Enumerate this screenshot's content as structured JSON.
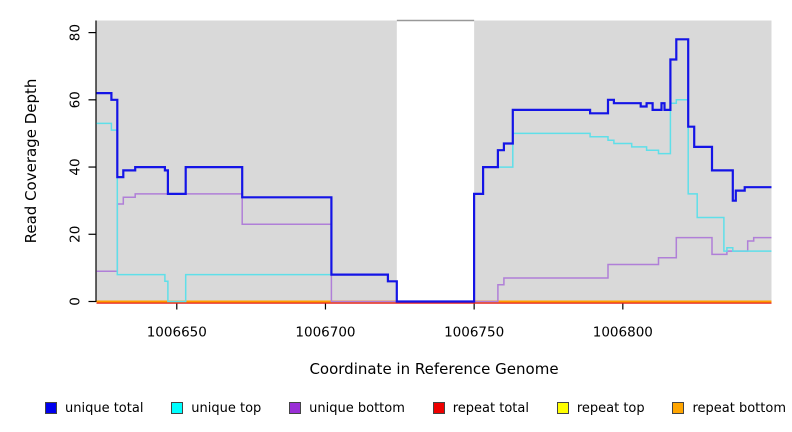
{
  "figure": {
    "x_axis_label": "Coordinate in Reference Genome",
    "y_axis_label": "Read Coverage Depth"
  },
  "chart_data": {
    "type": "line",
    "title": "",
    "xlabel": "Coordinate in Reference Genome",
    "ylabel": "Read Coverage Depth",
    "step_mode": "step-after",
    "xlim": [
      1006623,
      1006850
    ],
    "ylim": [
      0,
      83.6
    ],
    "x_ticks": [
      1006650,
      1006700,
      1006750,
      1006800
    ],
    "y_ticks": [
      0,
      20,
      40,
      60,
      80
    ],
    "plot_background_color": "#d9d9d9",
    "no_data_gap_x": [
      1006724,
      1006750
    ],
    "gap_top_border_color": "#999999",
    "series": [
      {
        "name": "repeat total",
        "color": "#e62020",
        "line_width": 2,
        "py_offset": 1.3,
        "segments": [
          [
            [
              1006623,
              0
            ],
            [
              1006850,
              0
            ]
          ]
        ]
      },
      {
        "name": "repeat top",
        "color": "#ffff00",
        "line_width": 1.6,
        "py_offset": 0,
        "segments": [
          [
            [
              1006623,
              0
            ],
            [
              1006850,
              0
            ]
          ]
        ]
      },
      {
        "name": "repeat bottom",
        "color": "#ff9d00",
        "line_width": 1.9,
        "py_offset": 0,
        "segments": [
          [
            [
              1006623,
              0
            ],
            [
              1006724,
              0
            ]
          ],
          [
            [
              1006750,
              0
            ],
            [
              1006850,
              0
            ]
          ]
        ]
      },
      {
        "name": "unique bottom",
        "color": "#b07fd8",
        "line_width": 1.5,
        "py_offset": 0,
        "segments": [
          [
            [
              1006623,
              9
            ],
            [
              1006630,
              29
            ],
            [
              1006632,
              31
            ],
            [
              1006636,
              32
            ],
            [
              1006672,
              23
            ],
            [
              1006702,
              0
            ],
            [
              1006758,
              5
            ],
            [
              1006760,
              7
            ],
            [
              1006795,
              11
            ],
            [
              1006812,
              13
            ],
            [
              1006818,
              19
            ],
            [
              1006830,
              14
            ],
            [
              1006835,
              15
            ],
            [
              1006842,
              18
            ],
            [
              1006844,
              19
            ],
            [
              1006850,
              19
            ]
          ]
        ]
      },
      {
        "name": "unique top",
        "color": "#5fdfe9",
        "line_width": 1.5,
        "py_offset": 0,
        "segments": [
          [
            [
              1006623,
              53
            ],
            [
              1006628,
              51
            ],
            [
              1006630,
              8
            ],
            [
              1006646,
              6
            ],
            [
              1006647,
              0
            ],
            [
              1006653,
              8
            ],
            [
              1006721,
              6
            ],
            [
              1006724,
              0
            ],
            [
              1006750,
              32
            ],
            [
              1006753,
              40
            ],
            [
              1006763,
              50
            ],
            [
              1006789,
              49
            ],
            [
              1006795,
              48
            ],
            [
              1006797,
              47
            ],
            [
              1006803,
              46
            ],
            [
              1006808,
              45
            ],
            [
              1006812,
              44
            ],
            [
              1006816,
              59
            ],
            [
              1006818,
              60
            ],
            [
              1006822,
              32
            ],
            [
              1006825,
              25
            ],
            [
              1006834,
              15
            ],
            [
              1006835,
              16
            ],
            [
              1006837,
              15
            ],
            [
              1006850,
              15
            ]
          ]
        ]
      },
      {
        "name": "unique total",
        "color": "#1414e6",
        "line_width": 2.2,
        "py_offset": 0,
        "segments": [
          [
            [
              1006623,
              62
            ],
            [
              1006628,
              60
            ],
            [
              1006630,
              37
            ],
            [
              1006632,
              39
            ],
            [
              1006636,
              40
            ],
            [
              1006646,
              39
            ],
            [
              1006647,
              32
            ],
            [
              1006653,
              40
            ],
            [
              1006672,
              31
            ],
            [
              1006702,
              8
            ],
            [
              1006721,
              6
            ],
            [
              1006724,
              0
            ],
            [
              1006750,
              32
            ],
            [
              1006753,
              40
            ],
            [
              1006758,
              45
            ],
            [
              1006760,
              47
            ],
            [
              1006763,
              57
            ],
            [
              1006789,
              56
            ],
            [
              1006795,
              60
            ],
            [
              1006797,
              59
            ],
            [
              1006806,
              58
            ],
            [
              1006808,
              59
            ],
            [
              1006810,
              57
            ],
            [
              1006813,
              59
            ],
            [
              1006814,
              57
            ],
            [
              1006816,
              72
            ],
            [
              1006818,
              78
            ],
            [
              1006822,
              52
            ],
            [
              1006824,
              46
            ],
            [
              1006830,
              39
            ],
            [
              1006837,
              30
            ],
            [
              1006838,
              33
            ],
            [
              1006841,
              34
            ],
            [
              1006850,
              34
            ]
          ]
        ]
      }
    ]
  },
  "legend": {
    "items": [
      {
        "label": "unique total",
        "color": "#0000ee"
      },
      {
        "label": "unique top",
        "color": "#00ffff"
      },
      {
        "label": "unique bottom",
        "color": "#9a2fd6"
      },
      {
        "label": "repeat total",
        "color": "#ee0000"
      },
      {
        "label": "repeat top",
        "color": "#ffff00"
      },
      {
        "label": "repeat bottom",
        "color": "#ffa500"
      }
    ]
  }
}
